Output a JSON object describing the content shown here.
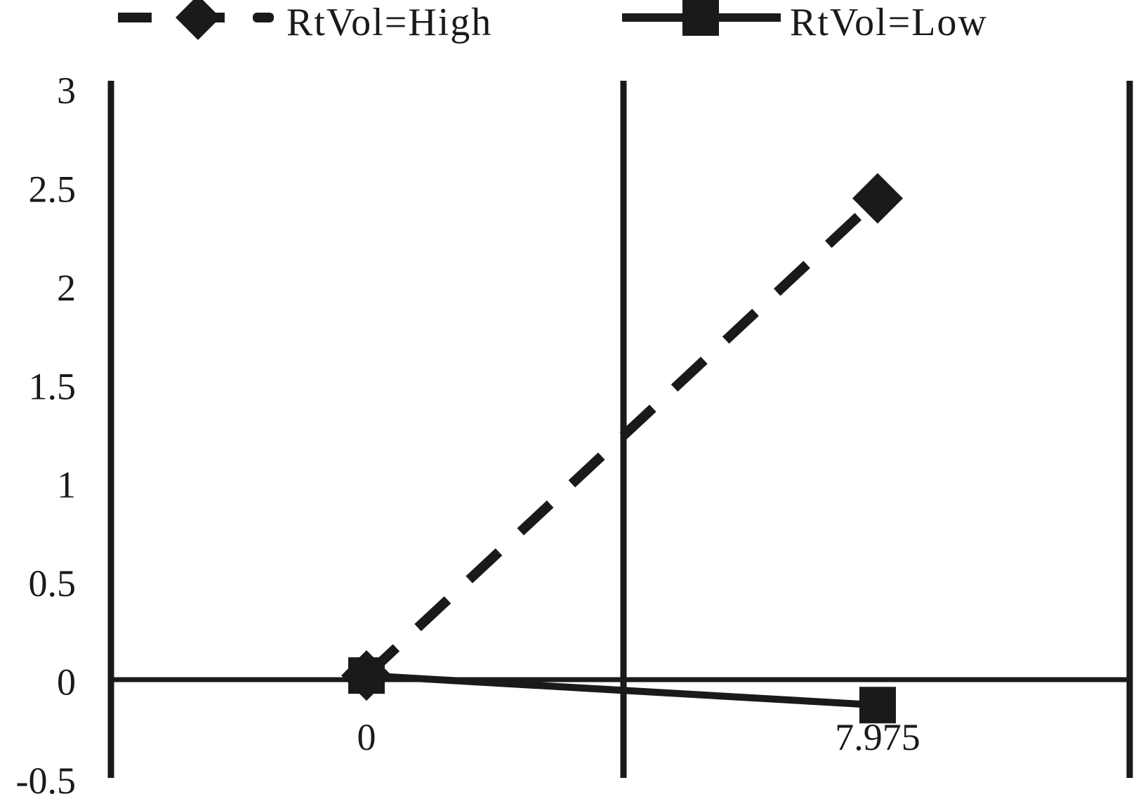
{
  "chart_data": {
    "type": "line",
    "categories": [
      "0",
      "7.975"
    ],
    "y_ticks": [
      "3",
      "2.5",
      "2",
      "1.5",
      "1",
      "0.5",
      "0",
      "-0.5"
    ],
    "ylim": [
      -0.5,
      3
    ],
    "series": [
      {
        "name": "RtVol=High",
        "values": [
          0.03,
          2.45
        ],
        "line_style": "dashed",
        "marker": "diamond",
        "marker_icon": "diamond-marker-icon"
      },
      {
        "name": "RtVol=Low",
        "values": [
          0.03,
          -0.12
        ],
        "line_style": "solid",
        "marker": "square",
        "marker_icon": "square-marker-icon"
      }
    ],
    "legend_position": "top",
    "grid": false,
    "colors": {
      "ink": "#1a1a1a",
      "background": "#ffffff"
    }
  }
}
